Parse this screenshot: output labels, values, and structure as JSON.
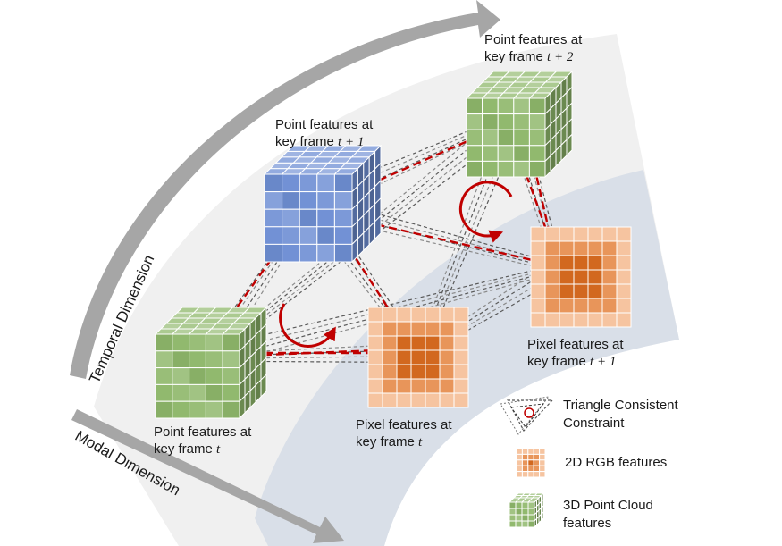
{
  "axes": {
    "temporal": "Temporal Dimension",
    "modal": "Modal Dimension"
  },
  "nodes": {
    "point_t": {
      "line1": "Point features at",
      "line2_prefix": "key frame ",
      "line2_var": "t"
    },
    "point_t1": {
      "line1": "Point features at",
      "line2_prefix": "key frame ",
      "line2_var": "t + 1"
    },
    "point_t2": {
      "line1": "Point features at",
      "line2_prefix": "key frame ",
      "line2_var": "t + 2"
    },
    "pixel_t": {
      "line1": "Pixel features at",
      "line2_prefix": "key frame ",
      "line2_var": "t"
    },
    "pixel_t1": {
      "line1": "Pixel features at",
      "line2_prefix": "key frame ",
      "line2_var": "t + 1"
    }
  },
  "legend": {
    "triangle": {
      "line1": "Triangle Consistent",
      "line2": "Constraint"
    },
    "rgb": {
      "line1": "2D RGB features"
    },
    "pointcloud": {
      "line1": "3D Point Cloud",
      "line2": "features"
    }
  },
  "colors": {
    "green_cube": "#8fb86b",
    "blue_cube": "#6f8fd4",
    "orange_dark": "#d2681f",
    "orange_light": "#f6c4a0",
    "red_arrow": "#c00000",
    "gray_arrow": "#707070",
    "region_light": "#f0f0f0",
    "region_blue": "#d9dfe8",
    "axis_arrow": "#a6a6a6"
  }
}
